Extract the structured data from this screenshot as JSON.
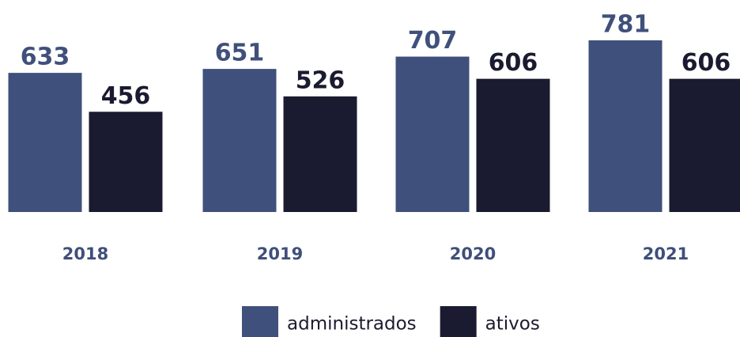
{
  "chart_data": {
    "type": "bar",
    "categories": [
      "2018",
      "2019",
      "2020",
      "2021"
    ],
    "series": [
      {
        "name": "administrados",
        "color": "#40507c",
        "values": [
          633,
          651,
          707,
          781
        ]
      },
      {
        "name": "ativos",
        "color": "#1a1a30",
        "values": [
          456,
          526,
          606,
          606
        ]
      }
    ]
  }
}
